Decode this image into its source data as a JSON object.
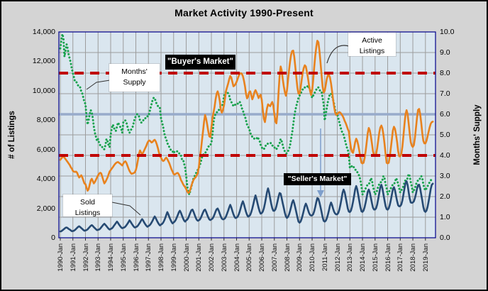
{
  "chart_data": {
    "type": "line",
    "title": "Market Activity  1990-Present",
    "grid": true,
    "plot_bg": "#DAE6EF",
    "grid_color": "#9C9C9C",
    "border_color": "#00008B",
    "y_left": {
      "label": "# of Listings",
      "min": 0,
      "max": 14000,
      "ticks": [
        "14,000",
        "12,000",
        "10,000",
        "8,000",
        "6,000",
        "4,000",
        "2,000",
        "0"
      ],
      "tick_values": [
        14000,
        12000,
        10000,
        8000,
        6000,
        4000,
        2000,
        0
      ]
    },
    "y_right": {
      "label": "Months' Supply",
      "min": 0,
      "max": 10,
      "ticks": [
        "10.0",
        "9.0",
        "8.0",
        "7.0",
        "6.0",
        "5.0",
        "4.0",
        "3.0",
        "2.0",
        "1.0",
        "0.0"
      ],
      "tick_values": [
        10,
        9,
        8,
        7,
        6,
        5,
        4,
        3,
        2,
        1,
        0
      ]
    },
    "x": {
      "start_month": "1990-01",
      "end_month": "2019-08",
      "tick_labels": [
        "1990-Jan",
        "1991-Jan",
        "1992-Jan",
        "1993-Jan",
        "1994-Jan",
        "1995-Jan",
        "1996-Jan",
        "1997-Jan",
        "1998-Jan",
        "1999-Jan",
        "2000-Jan",
        "2001-Jan",
        "2002-Jan",
        "2003-Jan",
        "2004-Jan",
        "2005-Jan",
        "2006-Jan",
        "2007-Jan",
        "2008-Jan",
        "2009-Jan",
        "2010-Jan",
        "2011-Jan",
        "2012-Jan",
        "2013-Jan",
        "2014-Jan",
        "2015-Jan",
        "2016-Jan",
        "2017-Jan",
        "2018-Jan",
        "2019-Jan"
      ]
    },
    "reference_lines": [
      {
        "axis": "right",
        "value": 8.0,
        "color": "#C00000",
        "style": "dashed",
        "label": "\"Buyer's Market\""
      },
      {
        "axis": "right",
        "value": 6.0,
        "color": "#98ABCB",
        "style": "solid",
        "label": ""
      },
      {
        "axis": "right",
        "value": 4.0,
        "color": "#C00000",
        "style": "dashed",
        "label": "\"Seller's Market\""
      }
    ],
    "series": [
      {
        "name": "Months' Supply",
        "axis": "right",
        "color": "#18A24D",
        "style": "dotted",
        "values": [
          9.2,
          9.6,
          9.9,
          9.7,
          8.8,
          9.1,
          9.4,
          9.2,
          8.9,
          8.7,
          8.5,
          8.2,
          8.0,
          7.8,
          7.6,
          7.6,
          7.5,
          7.4,
          7.4,
          7.3,
          7.1,
          7.0,
          6.8,
          6.6,
          6.5,
          5.9,
          5.5,
          5.7,
          6.0,
          6.2,
          6.1,
          5.8,
          5.4,
          5.1,
          4.9,
          4.7,
          4.8,
          4.6,
          4.5,
          4.5,
          4.4,
          4.3,
          4.3,
          4.5,
          4.8,
          4.7,
          4.5,
          4.4,
          5.0,
          5.3,
          5.5,
          5.4,
          5.2,
          5.2,
          5.4,
          5.6,
          5.5,
          5.4,
          5.3,
          5.1,
          5.6,
          5.7,
          5.7,
          5.6,
          5.4,
          5.2,
          5.1,
          5.2,
          5.3,
          5.4,
          5.6,
          5.8,
          5.9,
          6.0,
          6.0,
          5.9,
          5.7,
          5.6,
          5.6,
          5.7,
          5.8,
          5.8,
          5.9,
          5.9,
          5.9,
          6.1,
          6.3,
          6.5,
          6.7,
          6.8,
          6.8,
          6.6,
          6.5,
          6.4,
          6.3,
          6.3,
          5.8,
          5.6,
          5.4,
          5.1,
          4.9,
          4.8,
          4.6,
          4.5,
          4.4,
          4.3,
          4.2,
          4.2,
          4.1,
          4.2,
          4.2,
          4.2,
          4.2,
          4.1,
          4.1,
          4.0,
          3.8,
          3.8,
          3.6,
          3.4,
          3.0,
          2.5,
          2.2,
          2.1,
          2.3,
          2.5,
          2.7,
          2.9,
          3.0,
          3.1,
          3.2,
          3.3,
          3.4,
          3.5,
          3.7,
          3.9,
          4.0,
          4.1,
          4.1,
          4.2,
          4.3,
          4.4,
          4.5,
          4.5,
          4.6,
          5.0,
          5.6,
          5.9,
          6.0,
          6.1,
          6.1,
          6.2,
          6.3,
          6.4,
          6.4,
          6.5,
          6.9,
          7.0,
          7.1,
          7.1,
          7.0,
          6.9,
          6.7,
          6.6,
          6.5,
          6.4,
          6.4,
          6.5,
          6.5,
          6.5,
          6.6,
          6.6,
          6.5,
          6.3,
          6.2,
          6.0,
          5.9,
          5.7,
          5.5,
          5.4,
          5.3,
          5.1,
          5.0,
          4.9,
          4.9,
          4.8,
          4.8,
          4.8,
          4.9,
          4.8,
          4.7,
          4.5,
          4.4,
          4.3,
          4.3,
          4.4,
          4.5,
          4.5,
          4.6,
          4.6,
          4.6,
          4.6,
          4.5,
          4.4,
          4.4,
          4.3,
          4.3,
          4.4,
          4.5,
          4.6,
          4.8,
          4.7,
          4.5,
          4.3,
          4.2,
          4.1,
          4.1,
          4.2,
          4.3,
          4.5,
          4.8,
          5.1,
          5.5,
          5.9,
          6.2,
          6.4,
          6.6,
          6.8,
          6.9,
          7.0,
          7.1,
          7.2,
          7.3,
          7.3,
          7.3,
          7.3,
          7.4,
          7.3,
          7.2,
          7.0,
          6.8,
          6.9,
          7.0,
          7.1,
          7.2,
          7.3,
          7.3,
          7.2,
          7.1,
          7.1,
          6.8,
          6.5,
          5.7,
          6.0,
          6.3,
          6.6,
          6.8,
          7.0,
          7.0,
          6.9,
          6.7,
          6.5,
          6.2,
          6.0,
          6.0,
          5.8,
          5.6,
          5.4,
          5.2,
          5.1,
          5.0,
          4.8,
          4.6,
          4.4,
          4.3,
          4.0,
          3.4,
          3.4,
          3.5,
          3.5,
          3.4,
          3.3,
          3.3,
          3.2,
          3.1,
          3.0,
          2.8,
          2.5,
          2.1,
          2.2,
          2.3,
          2.4,
          2.5,
          2.6,
          2.6,
          2.7,
          2.9,
          2.8,
          2.5,
          2.3,
          2.1,
          2.2,
          2.3,
          2.5,
          2.6,
          2.7,
          2.7,
          2.8,
          3.0,
          2.9,
          2.6,
          2.4,
          2.1,
          2.2,
          2.3,
          2.4,
          2.5,
          2.6,
          2.6,
          2.7,
          2.9,
          2.8,
          2.6,
          2.4,
          2.2,
          2.3,
          2.4,
          2.5,
          2.7,
          2.8,
          2.8,
          2.9,
          3.1,
          3.0,
          2.7,
          2.5,
          2.2,
          2.3,
          2.4,
          2.6,
          2.7,
          2.8,
          2.8,
          2.9,
          3.0,
          2.9,
          2.6,
          2.4,
          2.3,
          2.4,
          2.5,
          2.6,
          2.7,
          2.8,
          2.8,
          2.9
        ]
      },
      {
        "name": "Active Listings",
        "axis": "left",
        "color": "#E8821E",
        "style": "solid",
        "values": [
          5300,
          5400,
          5480,
          5520,
          5450,
          5350,
          5250,
          5150,
          5050,
          4950,
          4800,
          4700,
          4550,
          4500,
          4480,
          4500,
          4420,
          4250,
          4100,
          4180,
          4250,
          4100,
          3900,
          3700,
          3650,
          3400,
          3200,
          3300,
          3600,
          3900,
          4010,
          3850,
          3700,
          3800,
          3950,
          4100,
          4250,
          4350,
          4420,
          4380,
          4150,
          3900,
          3700,
          3800,
          3950,
          4100,
          4300,
          4500,
          4600,
          4700,
          4800,
          4900,
          5000,
          5080,
          5130,
          5150,
          5100,
          5050,
          4980,
          4920,
          5050,
          5150,
          5200,
          5100,
          4900,
          4700,
          4550,
          4420,
          4350,
          4380,
          4400,
          4450,
          4600,
          4900,
          5300,
          5700,
          5940,
          5800,
          5700,
          5800,
          5950,
          6100,
          6250,
          6450,
          6580,
          6620,
          6560,
          6480,
          6520,
          6620,
          6660,
          6550,
          6350,
          6100,
          5800,
          5550,
          5450,
          5300,
          5220,
          5260,
          5380,
          5450,
          5350,
          5200,
          5060,
          4850,
          4650,
          4500,
          4330,
          4300,
          4350,
          4400,
          4410,
          4300,
          4150,
          3930,
          3800,
          3650,
          3530,
          3450,
          3300,
          3150,
          3050,
          3100,
          3300,
          3550,
          3770,
          3950,
          4050,
          4120,
          4250,
          4400,
          4800,
          5400,
          5940,
          6600,
          7230,
          7900,
          8350,
          8100,
          7700,
          7250,
          6900,
          6850,
          7500,
          8100,
          8510,
          8900,
          9400,
          9800,
          9960,
          9700,
          9300,
          8700,
          8510,
          8700,
          9000,
          9500,
          10000,
          10250,
          10500,
          10800,
          11000,
          10900,
          10600,
          10300,
          10350,
          10450,
          10600,
          10800,
          11000,
          11150,
          11200,
          11150,
          11000,
          10700,
          10300,
          9800,
          9480,
          9600,
          9900,
          9960,
          9700,
          9420,
          9600,
          9900,
          10040,
          9900,
          9720,
          9500,
          9650,
          9719,
          9400,
          8700,
          8100,
          7870,
          8300,
          8800,
          9075,
          9000,
          8950,
          9100,
          9236,
          9000,
          8400,
          7900,
          7789,
          8500,
          9880,
          11008,
          11650,
          11400,
          10800,
          10300,
          9900,
          9660,
          10000,
          10700,
          11400,
          12000,
          12450,
          12700,
          12730,
          12300,
          11600,
          10900,
          10200,
          9800,
          9800,
          10200,
          10700,
          11200,
          11550,
          11730,
          11650,
          11300,
          10900,
          10400,
          10000,
          9720,
          10000,
          10700,
          11600,
          12400,
          13000,
          13400,
          13300,
          12700,
          11900,
          11100,
          10300,
          9880,
          10000,
          10400,
          10800,
          11050,
          11090,
          10900,
          10500,
          10000,
          9400,
          8900,
          8500,
          8350,
          8400,
          8500,
          8545,
          8500,
          8400,
          8300,
          8150,
          7950,
          7800,
          7600,
          7400,
          7230,
          6600,
          6100,
          5850,
          5780,
          6100,
          6500,
          6740,
          6600,
          6300,
          5900,
          5450,
          5100,
          5060,
          5100,
          5400,
          5900,
          6500,
          7100,
          7470,
          7300,
          6900,
          6400,
          5900,
          5620,
          5620,
          5700,
          6100,
          6600,
          7150,
          7500,
          7630,
          7450,
          7000,
          6400,
          5700,
          5100,
          5060,
          5100,
          5500,
          6100,
          6700,
          7300,
          7550,
          7400,
          7000,
          6500,
          5900,
          5540,
          5540,
          5700,
          6200,
          6900,
          7700,
          8400,
          8680,
          8400,
          7800,
          7100,
          6500,
          6260,
          6180,
          6300,
          6800,
          7500,
          8200,
          8700,
          8760,
          8400,
          7800,
          7100,
          6600,
          6420,
          6420,
          6600,
          6900,
          7200,
          7500,
          7750,
          7870,
          7900
        ]
      },
      {
        "name": "Sold Listings",
        "axis": "left",
        "color": "#264A73",
        "style": "solid",
        "values": [
          430,
          450,
          500,
          560,
          620,
          680,
          700,
          660,
          600,
          560,
          500,
          450,
          460,
          480,
          530,
          600,
          670,
          740,
          780,
          730,
          660,
          600,
          530,
          480,
          500,
          520,
          570,
          650,
          730,
          810,
          860,
          800,
          720,
          650,
          580,
          520,
          540,
          560,
          620,
          710,
          800,
          890,
          950,
          880,
          790,
          700,
          620,
          560,
          600,
          630,
          700,
          800,
          900,
          1000,
          1100,
          1010,
          900,
          800,
          710,
          650,
          680,
          700,
          760,
          850,
          950,
          1070,
          1190,
          1090,
          970,
          860,
          760,
          700,
          730,
          760,
          830,
          930,
          1040,
          1170,
          1270,
          1170,
          1040,
          920,
          820,
          750,
          800,
          840,
          920,
          1040,
          1170,
          1330,
          1450,
          1330,
          1180,
          1040,
          920,
          840,
          900,
          940,
          1030,
          1170,
          1330,
          1550,
          1750,
          1590,
          1400,
          1230,
          1080,
          980,
          1050,
          1100,
          1210,
          1370,
          1550,
          1740,
          1840,
          1700,
          1500,
          1320,
          1170,
          1100,
          1190,
          1240,
          1360,
          1540,
          1720,
          1880,
          1917,
          1760,
          1560,
          1380,
          1230,
          1160,
          1190,
          1240,
          1360,
          1540,
          1720,
          1870,
          1917,
          1770,
          1570,
          1390,
          1250,
          1200,
          1250,
          1300,
          1420,
          1600,
          1780,
          1940,
          1990,
          1840,
          1630,
          1450,
          1300,
          1250,
          1270,
          1330,
          1460,
          1650,
          1850,
          2070,
          2240,
          2060,
          1820,
          1600,
          1430,
          1340,
          1370,
          1430,
          1580,
          1790,
          2030,
          2300,
          2480,
          2280,
          2010,
          1760,
          1560,
          1440,
          1480,
          1560,
          1740,
          1990,
          2290,
          2620,
          2880,
          2650,
          2330,
          2030,
          1780,
          1640,
          1680,
          1780,
          2000,
          2320,
          2700,
          3100,
          3360,
          3080,
          2680,
          2320,
          2020,
          1840,
          1840,
          1930,
          2150,
          2460,
          2790,
          3040,
          3000,
          2700,
          2350,
          2030,
          1700,
          1450,
          1350,
          1420,
          1590,
          1830,
          2100,
          2400,
          2560,
          2340,
          2030,
          1730,
          1400,
          1100,
          1030,
          1100,
          1280,
          1540,
          1830,
          2140,
          2320,
          2160,
          1920,
          1700,
          1560,
          1510,
          1520,
          1600,
          1800,
          2100,
          2450,
          2700,
          2650,
          2400,
          2080,
          1760,
          1400,
          1150,
          1100,
          1160,
          1320,
          1560,
          1850,
          2180,
          2400,
          2240,
          1980,
          1760,
          1640,
          1590,
          1600,
          1700,
          1930,
          2260,
          2650,
          3050,
          3280,
          3100,
          2740,
          2360,
          2000,
          1780,
          1750,
          1850,
          2090,
          2440,
          2850,
          3290,
          3520,
          3300,
          2900,
          2480,
          2080,
          1800,
          1760,
          1850,
          2070,
          2390,
          2760,
          3120,
          3280,
          3080,
          2720,
          2350,
          2050,
          1920,
          1920,
          2020,
          2270,
          2630,
          3040,
          3440,
          3600,
          3370,
          2950,
          2540,
          2160,
          1950,
          1910,
          2000,
          2230,
          2560,
          2940,
          3300,
          3440,
          3220,
          2840,
          2480,
          2210,
          2140,
          2160,
          2270,
          2540,
          2920,
          3350,
          3720,
          3850,
          3580,
          3120,
          2680,
          2400,
          2380,
          2400,
          2480,
          2700,
          3000,
          3350,
          3580,
          3610,
          3350,
          2930,
          2520,
          2100,
          1830,
          1760,
          1850,
          2100,
          2450,
          2870,
          3300,
          3600,
          3680
        ]
      }
    ],
    "annotations": {
      "buyers_market": "\"Buyer's Market\"",
      "sellers_market": "\"Seller's Market\"",
      "months_supply": {
        "line1": "Months'",
        "line2": "Supply"
      },
      "active_listings": {
        "line1": "Active",
        "line2": "Listings"
      },
      "sold_listings": {
        "line1": "Sold",
        "line2": "Listings"
      }
    }
  }
}
